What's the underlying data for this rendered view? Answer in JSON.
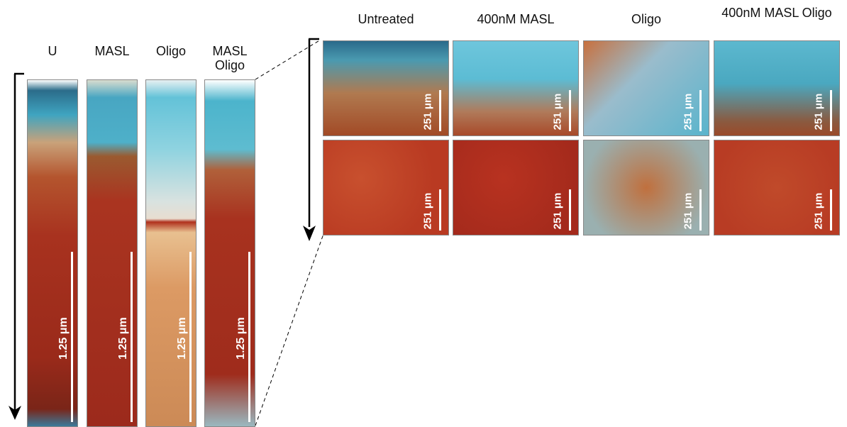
{
  "left": {
    "columns": [
      {
        "label": "U",
        "scale": "1.25 μm"
      },
      {
        "label": "MASL",
        "scale": "1.25 μm"
      },
      {
        "label": "Oligo",
        "scale": "1.25 μm"
      },
      {
        "label": "MASL Oligo",
        "scale": "1.25 μm"
      }
    ]
  },
  "right": {
    "columns": [
      {
        "label": "Untreated",
        "scales": [
          "251 μm",
          "251 μm"
        ]
      },
      {
        "label": "400nM MASL",
        "scales": [
          "251 μm",
          "251 μm"
        ]
      },
      {
        "label": "Oligo",
        "scales": [
          "251 μm",
          "251 μm"
        ]
      },
      {
        "label": "400nM MASL Oligo",
        "scales": [
          "251 μm",
          "251 μm"
        ]
      }
    ]
  }
}
